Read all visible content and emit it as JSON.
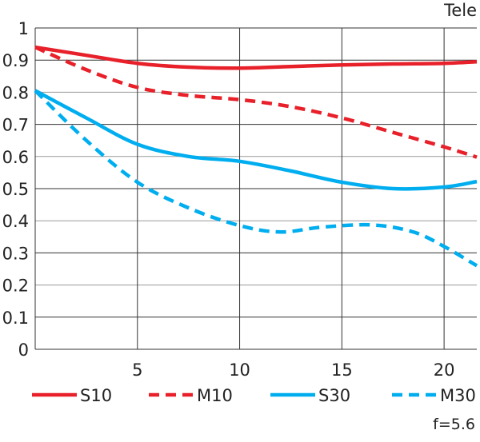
{
  "chart_data": {
    "type": "line",
    "title": "Tele",
    "annotation": "f=5.6",
    "xlabel": "",
    "ylabel": "",
    "xlim": [
      0,
      21.6
    ],
    "ylim": [
      0,
      1
    ],
    "xticks": [
      5,
      10,
      15,
      20
    ],
    "xtick_labels": [
      "5",
      "10",
      "15",
      "20"
    ],
    "yticks": [
      0,
      0.1,
      0.2,
      0.3,
      0.4,
      0.5,
      0.6,
      0.7,
      0.8,
      0.9,
      1
    ],
    "ytick_labels": [
      "0",
      "0.1",
      "0.2",
      "0.3",
      "0.4",
      "0.5",
      "0.6",
      "0.7",
      "0.8",
      "0.9",
      "1"
    ],
    "grid": true,
    "legend_position": "bottom",
    "series": [
      {
        "name": "S10",
        "color": "#e8202a",
        "dashed": false,
        "x": [
          0,
          2.5,
          5,
          7.5,
          10,
          12.5,
          15,
          17.5,
          20,
          21.6
        ],
        "y": [
          0.94,
          0.915,
          0.89,
          0.878,
          0.875,
          0.88,
          0.885,
          0.888,
          0.89,
          0.895
        ]
      },
      {
        "name": "M10",
        "color": "#e8202a",
        "dashed": true,
        "x": [
          0,
          2.5,
          5,
          7.5,
          10,
          12.5,
          15,
          17.5,
          20,
          21.6
        ],
        "y": [
          0.94,
          0.87,
          0.815,
          0.79,
          0.777,
          0.755,
          0.72,
          0.675,
          0.63,
          0.598
        ]
      },
      {
        "name": "S30",
        "color": "#00aeef",
        "dashed": false,
        "x": [
          0,
          2.5,
          5,
          7.5,
          10,
          12.5,
          15,
          17.5,
          20,
          21.6
        ],
        "y": [
          0.805,
          0.72,
          0.638,
          0.6,
          0.585,
          0.555,
          0.52,
          0.5,
          0.505,
          0.522
        ]
      },
      {
        "name": "M30",
        "color": "#00aeef",
        "dashed": true,
        "x": [
          0,
          2.5,
          5,
          7.5,
          10,
          12,
          14,
          16.5,
          18.5,
          20,
          21.6
        ],
        "y": [
          0.805,
          0.65,
          0.52,
          0.44,
          0.385,
          0.365,
          0.38,
          0.387,
          0.365,
          0.32,
          0.26
        ]
      }
    ]
  }
}
